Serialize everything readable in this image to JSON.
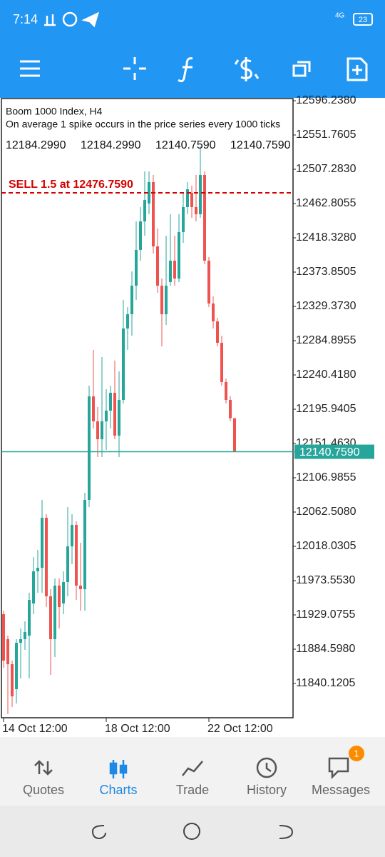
{
  "status_bar": {
    "time": "7:14",
    "network": "4G",
    "battery": "23"
  },
  "chart_data": {
    "type": "candlestick",
    "title": "Boom 1000 Index, H4",
    "subtitle": "On average 1 spike occurs in the price series every 1000 ticks",
    "ohlc_header": [
      "12184.2990",
      "12184.2990",
      "12140.7590",
      "12140.7590"
    ],
    "sell_order": {
      "label": "SELL 1.5 at 12476.7590",
      "price": 12476.759
    },
    "bid": {
      "value": 12140.759,
      "label": "12140.7590"
    },
    "up_color": "#26a69a",
    "down_color": "#ef5350",
    "ylim": [
      11795.65,
      12599.02
    ],
    "yticks": [
      {
        "value": 12596.238,
        "label": "12596.2380"
      },
      {
        "value": 12551.7605,
        "label": "12551.7605"
      },
      {
        "value": 12507.283,
        "label": "12507.2830"
      },
      {
        "value": 12462.8055,
        "label": "12462.8055"
      },
      {
        "value": 12418.328,
        "label": "12418.3280"
      },
      {
        "value": 12373.8505,
        "label": "12373.8505"
      },
      {
        "value": 12329.373,
        "label": "12329.3730"
      },
      {
        "value": 12284.8955,
        "label": "12284.8955"
      },
      {
        "value": 12240.418,
        "label": "12240.4180"
      },
      {
        "value": 12195.9405,
        "label": "12195.9405"
      },
      {
        "value": 12151.463,
        "label": "12151.4630"
      },
      {
        "value": 12106.9855,
        "label": "12106.9855"
      },
      {
        "value": 12062.508,
        "label": "12062.5080"
      },
      {
        "value": 12018.0305,
        "label": "12018.0305"
      },
      {
        "value": 11973.553,
        "label": "11973.5530"
      },
      {
        "value": 11929.0755,
        "label": "11929.0755"
      },
      {
        "value": 11884.598,
        "label": "11884.5980"
      },
      {
        "value": 11840.1205,
        "label": "11840.1205"
      }
    ],
    "categories": [
      "14 Oct 12:00",
      null,
      null,
      null,
      null,
      null,
      null,
      null,
      null,
      null,
      null,
      null,
      null,
      null,
      null,
      null,
      null,
      null,
      null,
      null,
      null,
      null,
      null,
      null,
      "18 Oct 12:00",
      null,
      null,
      null,
      null,
      null,
      null,
      null,
      null,
      null,
      null,
      null,
      null,
      null,
      null,
      null,
      null,
      null,
      null,
      null,
      null,
      null,
      null,
      null,
      "22 Oct 12:00",
      null,
      null,
      null,
      null,
      null,
      null
    ],
    "open": [
      11930.0,
      11897.6,
      11865.1,
      11832.7,
      11892.9,
      11897.6,
      11902.2,
      11943.9,
      11985.6,
      11990.2,
      12055.1,
      11953.2,
      11897.6,
      11967.1,
      11943.9,
      11971.7,
      12018.0,
      12045.8,
      11967.1,
      11962.4,
      12078.3,
      12212.6,
      12180.2,
      12157.0,
      12180.2,
      12194.1,
      12217.3,
      12161.7,
      12208.0,
      12300.7,
      12319.2,
      12356.2,
      12402.6,
      12439.6,
      12462.8,
      12490.6,
      12407.2,
      12356.2,
      12319.2,
      12360.9,
      12388.7,
      12365.5,
      12425.7,
      12458.2,
      12476.7,
      12458.2,
      12448.9,
      12499.9,
      12388.7,
      12333.1,
      12309.9,
      12282.1,
      12231.2,
      12208.0,
      12184.299
    ],
    "high": [
      11934.6,
      11902.2,
      11869.8,
      11897.6,
      11911.5,
      11920.7,
      11957.8,
      12004.1,
      12013.4,
      12078.3,
      12059.7,
      11962.4,
      11976.3,
      11976.3,
      11985.6,
      12069.0,
      12059.7,
      12050.5,
      12022.7,
      12087.5,
      12226.5,
      12272.9,
      12198.7,
      12263.6,
      12221.9,
      12226.5,
      12259.0,
      12245.1,
      12337.7,
      12328.4,
      12374.8,
      12439.6,
      12458.2,
      12504.5,
      12504.5,
      12499.9,
      12430.4,
      12365.5,
      12421.1,
      12448.9,
      12421.1,
      12448.9,
      12476.7,
      12490.6,
      12486.0,
      12499.9,
      12536.9,
      12504.5,
      12393.3,
      12342.4,
      12314.5,
      12291.4,
      12235.8,
      12212.6,
      12184.299
    ],
    "low": [
      11860.5,
      11800.3,
      11809.6,
      11814.2,
      11846.6,
      11883.7,
      11846.6,
      11930.0,
      11957.8,
      11957.8,
      11939.3,
      11851.2,
      11874.4,
      11911.5,
      11930.0,
      11953.2,
      11994.9,
      11948.5,
      11934.6,
      11934.6,
      12069.0,
      12170.9,
      12133.9,
      12133.9,
      12143.1,
      12170.9,
      12157.0,
      12133.9,
      12203.4,
      12272.9,
      12291.4,
      12337.7,
      12388.7,
      12421.1,
      12448.9,
      12397.9,
      12347.0,
      12277.5,
      12305.3,
      12356.2,
      12356.2,
      12360.9,
      12411.8,
      12448.9,
      12444.3,
      12439.6,
      12444.3,
      12384.0,
      12328.4,
      12300.7,
      12277.5,
      12226.5,
      12203.4,
      12180.2,
      12140.759
    ],
    "close": [
      11869.8,
      11865.1,
      11823.4,
      11892.9,
      11897.6,
      11906.8,
      11948.5,
      11985.6,
      11990.2,
      12055.1,
      11953.2,
      11897.6,
      11967.1,
      11939.3,
      11971.7,
      12018.0,
      12045.8,
      11967.1,
      11962.4,
      12078.3,
      12212.6,
      12180.2,
      12157.0,
      12180.2,
      12194.1,
      12217.3,
      12161.7,
      12208.0,
      12300.7,
      12319.2,
      12356.2,
      12402.6,
      12439.6,
      12467.4,
      12490.6,
      12407.2,
      12356.2,
      12319.2,
      12356.2,
      12388.7,
      12365.5,
      12425.7,
      12458.2,
      12481.3,
      12458.2,
      12448.9,
      12499.9,
      12388.7,
      12333.1,
      12309.9,
      12282.1,
      12231.2,
      12208.0,
      12184.3,
      12140.759
    ]
  },
  "bottom_nav": {
    "items": [
      "Quotes",
      "Charts",
      "Trade",
      "History",
      "Messages"
    ],
    "badge": "1"
  }
}
